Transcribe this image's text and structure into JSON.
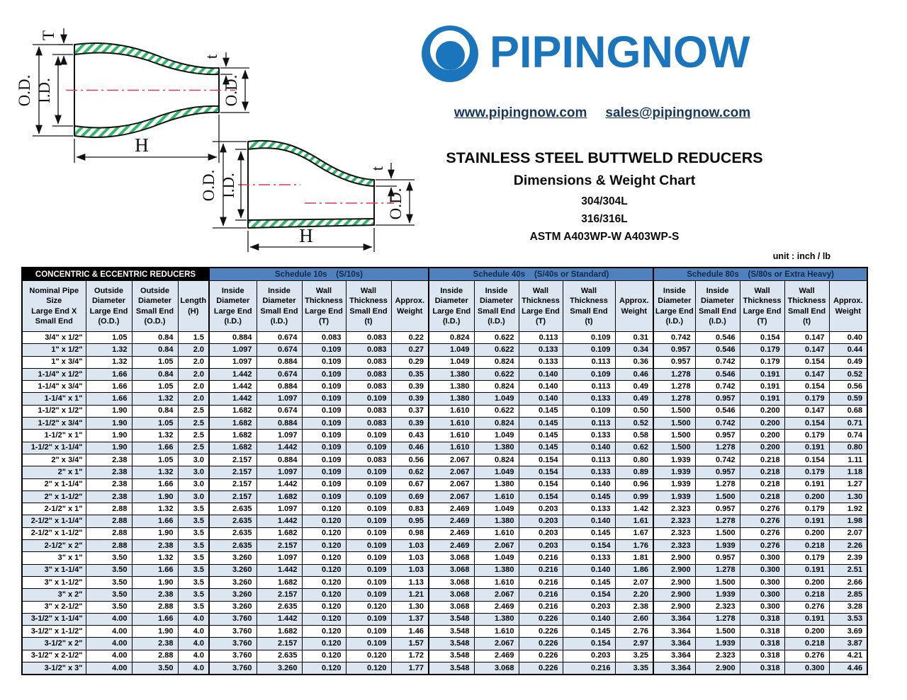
{
  "brand": {
    "logo_text": "PIPINGNOW",
    "website": "www.pipingnow.com",
    "email": "sales@pipingnow.com",
    "colors": {
      "brand_blue": "#1B75BC",
      "link_navy": "#17375E"
    }
  },
  "title": {
    "line1": "STAINLESS STEEL BUTTWELD REDUCERS",
    "line2": "Dimensions & Weight Chart",
    "line3": "304/304L",
    "line4": "316/316L",
    "line5": "ASTM A403WP-W   A403WP-S",
    "unit_note": "unit : inch / lb"
  },
  "diagrams": {
    "colors": {
      "hatch_green": "#2EB867",
      "centerline_red": "#E0394A",
      "outline": "#111111"
    },
    "concentric": {
      "wall_thickness_large": "T",
      "od_large": "O.D.",
      "id_large": "I.D.",
      "wall_thickness_small": "t",
      "od_small": "O.D.",
      "length": "H"
    },
    "eccentric": {
      "od_large": "O.D.",
      "id_large": "I.D.",
      "wall_thickness_small": "t",
      "od_small": "O.D.",
      "length": "H"
    }
  },
  "table": {
    "colors": {
      "schedule_header_bg": "#4F81BD",
      "header_fill": "#DCE6F1",
      "stripe_fill": "#DCE6F1"
    },
    "group_headers": [
      {
        "label": "CONCENTRIC & ECCENTRIC REDUCERS",
        "span": 4
      },
      {
        "label": "Schedule 10s    (S/10s)",
        "span": 5
      },
      {
        "label": "Schedule 40s    (S/40s or Standard)",
        "span": 5
      },
      {
        "label": "Schedule 80s    (S/80s or Extra Heavy)",
        "span": 5
      }
    ],
    "column_headers": [
      "Nominal Pipe\nSize\nLarge End X\nSmall End",
      "Outside\nDiameter\nLarge End\n(O.D.)",
      "Outside\nDiameter\nSmall End\n(O.D.)",
      "Length\n(H)",
      "Inside\nDiameter\nLarge End\n(I.D.)",
      "Inside\nDiameter\nSmall End\n(I.D.)",
      "Wall\nThickness\nLarge End\n(T)",
      "Wall\nThickness\nSmall End\n(t)",
      "Approx.\nWeight",
      "Inside\nDiameter\nLarge End\n(I.D.)",
      "Inside\nDiameter\nSmall End\n(I.D.)",
      "Wall\nThickness\nLarge End\n(T)",
      "Wall\nThickness\nSmall End\n(t)",
      "Approx.\nWeight",
      "Inside\nDiameter\nLarge End\n(I.D.)",
      "Inside\nDiameter\nSmall End\n(I.D.)",
      "Wall\nThickness\nLarge End\n(T)",
      "Wall\nThickness\nSmall End\n(t)",
      "Approx.\nWeight"
    ],
    "rows": [
      [
        "3/4\" x 1/2\"",
        "1.05",
        "0.84",
        "1.5",
        "0.884",
        "0.674",
        "0.083",
        "0.083",
        "0.22",
        "0.824",
        "0.622",
        "0.113",
        "0.109",
        "0.31",
        "0.742",
        "0.546",
        "0.154",
        "0.147",
        "0.40"
      ],
      [
        "1\" x 1/2\"",
        "1.32",
        "0.84",
        "2.0",
        "1.097",
        "0.674",
        "0.109",
        "0.083",
        "0.27",
        "1.049",
        "0.622",
        "0.133",
        "0.109",
        "0.34",
        "0.957",
        "0.546",
        "0.179",
        "0.147",
        "0.44"
      ],
      [
        "1\" x 3/4\"",
        "1.32",
        "1.05",
        "2.0",
        "1.097",
        "0.884",
        "0.109",
        "0.083",
        "0.29",
        "1.049",
        "0.824",
        "0.133",
        "0.113",
        "0.36",
        "0.957",
        "0.742",
        "0.179",
        "0.154",
        "0.49"
      ],
      [
        "1-1/4\" x 1/2\"",
        "1.66",
        "0.84",
        "2.0",
        "1.442",
        "0.674",
        "0.109",
        "0.083",
        "0.35",
        "1.380",
        "0.622",
        "0.140",
        "0.109",
        "0.46",
        "1.278",
        "0.546",
        "0.191",
        "0.147",
        "0.52"
      ],
      [
        "1-1/4\" x 3/4\"",
        "1.66",
        "1.05",
        "2.0",
        "1.442",
        "0.884",
        "0.109",
        "0.083",
        "0.39",
        "1.380",
        "0.824",
        "0.140",
        "0.113",
        "0.49",
        "1.278",
        "0.742",
        "0.191",
        "0.154",
        "0.56"
      ],
      [
        "1-1/4\" x 1\"",
        "1.66",
        "1.32",
        "2.0",
        "1.442",
        "1.097",
        "0.109",
        "0.109",
        "0.39",
        "1.380",
        "1.049",
        "0.140",
        "0.133",
        "0.49",
        "1.278",
        "0.957",
        "0.191",
        "0.179",
        "0.59"
      ],
      [
        "1-1/2\" x 1/2\"",
        "1.90",
        "0.84",
        "2.5",
        "1.682",
        "0.674",
        "0.109",
        "0.083",
        "0.37",
        "1.610",
        "0.622",
        "0.145",
        "0.109",
        "0.50",
        "1.500",
        "0.546",
        "0.200",
        "0.147",
        "0.68"
      ],
      [
        "1-1/2\" x 3/4\"",
        "1.90",
        "1.05",
        "2.5",
        "1.682",
        "0.884",
        "0.109",
        "0.083",
        "0.39",
        "1.610",
        "0.824",
        "0.145",
        "0.113",
        "0.52",
        "1.500",
        "0.742",
        "0.200",
        "0.154",
        "0.71"
      ],
      [
        "1-1/2\" x 1\"",
        "1.90",
        "1.32",
        "2.5",
        "1.682",
        "1.097",
        "0.109",
        "0.109",
        "0.43",
        "1.610",
        "1.049",
        "0.145",
        "0.133",
        "0.58",
        "1.500",
        "0.957",
        "0.200",
        "0.179",
        "0.74"
      ],
      [
        "1-1/2\" x 1-1/4\"",
        "1.90",
        "1.66",
        "2.5",
        "1.682",
        "1.442",
        "0.109",
        "0.109",
        "0.46",
        "1.610",
        "1.380",
        "0.145",
        "0.140",
        "0.62",
        "1.500",
        "1.278",
        "0.200",
        "0.191",
        "0.80"
      ],
      [
        "2\" x 3/4\"",
        "2.38",
        "1.05",
        "3.0",
        "2.157",
        "0.884",
        "0.109",
        "0.083",
        "0.56",
        "2.067",
        "0.824",
        "0.154",
        "0.113",
        "0.80",
        "1.939",
        "0.742",
        "0.218",
        "0.154",
        "1.11"
      ],
      [
        "2\" x 1\"",
        "2.38",
        "1.32",
        "3.0",
        "2.157",
        "1.097",
        "0.109",
        "0.109",
        "0.62",
        "2.067",
        "1.049",
        "0.154",
        "0.133",
        "0.89",
        "1.939",
        "0.957",
        "0.218",
        "0.179",
        "1.18"
      ],
      [
        "2\" x 1-1/4\"",
        "2.38",
        "1.66",
        "3.0",
        "2.157",
        "1.442",
        "0.109",
        "0.109",
        "0.67",
        "2.067",
        "1.380",
        "0.154",
        "0.140",
        "0.96",
        "1.939",
        "1.278",
        "0.218",
        "0.191",
        "1.27"
      ],
      [
        "2\" x 1-1/2\"",
        "2.38",
        "1.90",
        "3.0",
        "2.157",
        "1.682",
        "0.109",
        "0.109",
        "0.69",
        "2.067",
        "1.610",
        "0.154",
        "0.145",
        "0.99",
        "1.939",
        "1.500",
        "0.218",
        "0.200",
        "1.30"
      ],
      [
        "2-1/2\" x 1\"",
        "2.88",
        "1.32",
        "3.5",
        "2.635",
        "1.097",
        "0.120",
        "0.109",
        "0.83",
        "2.469",
        "1.049",
        "0.203",
        "0.133",
        "1.42",
        "2.323",
        "0.957",
        "0.276",
        "0.179",
        "1.92"
      ],
      [
        "2-1/2\" x 1-1/4\"",
        "2.88",
        "1.66",
        "3.5",
        "2.635",
        "1.442",
        "0.120",
        "0.109",
        "0.95",
        "2.469",
        "1.380",
        "0.203",
        "0.140",
        "1.61",
        "2.323",
        "1.278",
        "0.276",
        "0.191",
        "1.98"
      ],
      [
        "2-1/2\" x 1-1/2\"",
        "2.88",
        "1.90",
        "3.5",
        "2.635",
        "1.682",
        "0.120",
        "0.109",
        "0.98",
        "2.469",
        "1.610",
        "0.203",
        "0.145",
        "1.67",
        "2.323",
        "1.500",
        "0.276",
        "0.200",
        "2.07"
      ],
      [
        "2-1/2\" x 2\"",
        "2.88",
        "2.38",
        "3.5",
        "2.635",
        "2.157",
        "0.120",
        "0.109",
        "1.03",
        "2.469",
        "2.067",
        "0.203",
        "0.154",
        "1.76",
        "2.323",
        "1.939",
        "0.276",
        "0.218",
        "2.26"
      ],
      [
        "3\" x 1\"",
        "3.50",
        "1.32",
        "3.5",
        "3.260",
        "1.097",
        "0.120",
        "0.109",
        "1.03",
        "3.068",
        "1.049",
        "0.216",
        "0.133",
        "1.81",
        "2.900",
        "0.957",
        "0.300",
        "0.179",
        "2.39"
      ],
      [
        "3\" x 1-1/4\"",
        "3.50",
        "1.66",
        "3.5",
        "3.260",
        "1.442",
        "0.120",
        "0.109",
        "1.03",
        "3.068",
        "1.380",
        "0.216",
        "0.140",
        "1.86",
        "2.900",
        "1.278",
        "0.300",
        "0.191",
        "2.51"
      ],
      [
        "3\" x 1-1/2\"",
        "3.50",
        "1.90",
        "3.5",
        "3.260",
        "1.682",
        "0.120",
        "0.109",
        "1.13",
        "3.068",
        "1.610",
        "0.216",
        "0.145",
        "2.07",
        "2.900",
        "1.500",
        "0.300",
        "0.200",
        "2.66"
      ],
      [
        "3\" x 2\"",
        "3.50",
        "2.38",
        "3.5",
        "3.260",
        "2.157",
        "0.120",
        "0.109",
        "1.21",
        "3.068",
        "2.067",
        "0.216",
        "0.154",
        "2.20",
        "2.900",
        "1.939",
        "0.300",
        "0.218",
        "2.85"
      ],
      [
        "3\" x 2-1/2\"",
        "3.50",
        "2.88",
        "3.5",
        "3.260",
        "2.635",
        "0.120",
        "0.120",
        "1.30",
        "3.068",
        "2.469",
        "0.216",
        "0.203",
        "2.38",
        "2.900",
        "2.323",
        "0.300",
        "0.276",
        "3.28"
      ],
      [
        "3-1/2\" x 1-1/4\"",
        "4.00",
        "1.66",
        "4.0",
        "3.760",
        "1.442",
        "0.120",
        "0.109",
        "1.37",
        "3.548",
        "1.380",
        "0.226",
        "0.140",
        "2.60",
        "3.364",
        "1.278",
        "0.318",
        "0.191",
        "3.53"
      ],
      [
        "3-1/2\" x 1-1/2\"",
        "4.00",
        "1.90",
        "4.0",
        "3.760",
        "1.682",
        "0.120",
        "0.109",
        "1.46",
        "3.548",
        "1.610",
        "0.226",
        "0.145",
        "2.76",
        "3.364",
        "1.500",
        "0.318",
        "0.200",
        "3.69"
      ],
      [
        "3-1/2\" x 2\"",
        "4.00",
        "2.38",
        "4.0",
        "3.760",
        "2.157",
        "0.120",
        "0.109",
        "1.57",
        "3.548",
        "2.067",
        "0.226",
        "0.154",
        "2.97",
        "3.364",
        "1.939",
        "0.318",
        "0.218",
        "3.87"
      ],
      [
        "3-1/2\" x 2-1/2\"",
        "4.00",
        "2.88",
        "4.0",
        "3.760",
        "2.635",
        "0.120",
        "0.120",
        "1.72",
        "3.548",
        "2.469",
        "0.226",
        "0.203",
        "3.25",
        "3.364",
        "2.323",
        "0.318",
        "0.276",
        "4.21"
      ],
      [
        "3-1/2\" x 3\"",
        "4.00",
        "3.50",
        "4.0",
        "3.760",
        "3.260",
        "0.120",
        "0.120",
        "1.77",
        "3.548",
        "3.068",
        "0.226",
        "0.216",
        "3.35",
        "3.364",
        "2.900",
        "0.318",
        "0.300",
        "4.46"
      ]
    ]
  }
}
